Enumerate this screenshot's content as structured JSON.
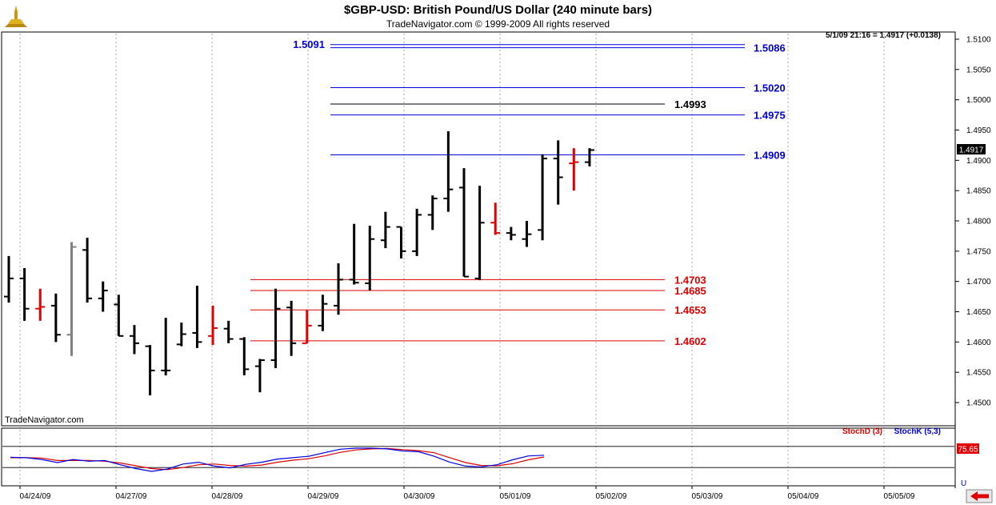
{
  "header": {
    "title": "$GBP-USD:  British Pound/US Dollar  (240 minute bars)",
    "copyright": "TradeNavigator.com © 1999-2009 All rights reserved"
  },
  "watermark": "TradeNavigator.com",
  "last_quote": "5/1/09 21:16 = 1.4917 (+0.0138)",
  "current_price_tag": "1.4917",
  "stoch": {
    "d_label": "StochD (3)",
    "k_label": "StochK (5,3)",
    "value_tag": "75.65",
    "d_color": "#e00000",
    "k_color": "#0000e0",
    "k_values": [
      49,
      48,
      43,
      34,
      43,
      38,
      40,
      28,
      17,
      9,
      16,
      30,
      35,
      24,
      19,
      29,
      35,
      44,
      48,
      52,
      62,
      72,
      75,
      75,
      73,
      67,
      65,
      52,
      35,
      24,
      22,
      28,
      42,
      53,
      55
    ],
    "d_values": [
      48,
      48,
      47,
      40,
      40,
      40,
      38,
      33,
      25,
      17,
      14,
      20,
      28,
      30,
      26,
      24,
      27,
      35,
      41,
      45,
      53,
      63,
      70,
      73,
      74,
      71,
      68,
      62,
      48,
      34,
      26,
      25,
      31,
      42,
      50
    ]
  },
  "colors": {
    "bar_normal": "#000000",
    "bar_gray": "#808080",
    "bar_red": "#e00000",
    "resistance": "#0000e0",
    "support": "#e00000",
    "pivot": "#000000"
  },
  "chart_data": {
    "type": "ohlc",
    "title": "$GBP-USD:  British Pound/US Dollar  (240 minute bars)",
    "ylim": [
      1.446,
      1.5125
    ],
    "y_ticks": [
      "1.4500",
      "1.4550",
      "1.4600",
      "1.4650",
      "1.4700",
      "1.4750",
      "1.4800",
      "1.4850",
      "1.4900",
      "1.4950",
      "1.5000",
      "1.5050",
      "1.5100"
    ],
    "x_ticks": [
      "04/24/09",
      "04/27/09",
      "04/28/09",
      "04/29/09",
      "04/30/09",
      "05/01/09",
      "05/02/09",
      "05/03/09",
      "05/04/09",
      "05/05/09"
    ],
    "bars": [
      {
        "o": 1.4675,
        "h": 1.4742,
        "l": 1.4665,
        "c": 1.4705,
        "color": "normal"
      },
      {
        "o": 1.4705,
        "h": 1.4722,
        "l": 1.4635,
        "c": 1.4655,
        "color": "normal"
      },
      {
        "o": 1.4655,
        "h": 1.4688,
        "l": 1.4635,
        "c": 1.4658,
        "color": "red"
      },
      {
        "o": 1.466,
        "h": 1.468,
        "l": 1.46,
        "c": 1.4612,
        "color": "normal"
      },
      {
        "o": 1.4612,
        "h": 1.4765,
        "l": 1.4577,
        "c": 1.4757,
        "color": "gray"
      },
      {
        "o": 1.4752,
        "h": 1.4772,
        "l": 1.4665,
        "c": 1.4672,
        "color": "normal"
      },
      {
        "o": 1.4672,
        "h": 1.47,
        "l": 1.465,
        "c": 1.4685,
        "color": "normal"
      },
      {
        "o": 1.4662,
        "h": 1.4678,
        "l": 1.461,
        "c": 1.461,
        "color": "normal"
      },
      {
        "o": 1.461,
        "h": 1.4628,
        "l": 1.458,
        "c": 1.4598,
        "color": "normal"
      },
      {
        "o": 1.4593,
        "h": 1.4595,
        "l": 1.4512,
        "c": 1.4553,
        "color": "normal"
      },
      {
        "o": 1.4553,
        "h": 1.464,
        "l": 1.4545,
        "c": 1.4553,
        "color": "normal"
      },
      {
        "o": 1.4596,
        "h": 1.4632,
        "l": 1.4593,
        "c": 1.4613,
        "color": "normal"
      },
      {
        "o": 1.4615,
        "h": 1.4693,
        "l": 1.459,
        "c": 1.46,
        "color": "normal"
      },
      {
        "o": 1.461,
        "h": 1.466,
        "l": 1.4595,
        "c": 1.4623,
        "color": "red"
      },
      {
        "o": 1.4622,
        "h": 1.4635,
        "l": 1.4598,
        "c": 1.4605,
        "color": "normal"
      },
      {
        "o": 1.4605,
        "h": 1.4608,
        "l": 1.4545,
        "c": 1.4555,
        "color": "normal"
      },
      {
        "o": 1.456,
        "h": 1.4572,
        "l": 1.4517,
        "c": 1.457,
        "color": "normal"
      },
      {
        "o": 1.457,
        "h": 1.4688,
        "l": 1.4557,
        "c": 1.4655,
        "color": "normal"
      },
      {
        "o": 1.4657,
        "h": 1.4668,
        "l": 1.4577,
        "c": 1.4598,
        "color": "normal"
      },
      {
        "o": 1.4598,
        "h": 1.4653,
        "l": 1.4598,
        "c": 1.4627,
        "color": "red"
      },
      {
        "o": 1.4627,
        "h": 1.4678,
        "l": 1.4618,
        "c": 1.4663,
        "color": "normal"
      },
      {
        "o": 1.466,
        "h": 1.473,
        "l": 1.4645,
        "c": 1.4703,
        "color": "normal"
      },
      {
        "o": 1.4703,
        "h": 1.4795,
        "l": 1.4695,
        "c": 1.4698,
        "color": "normal"
      },
      {
        "o": 1.4697,
        "h": 1.4792,
        "l": 1.4685,
        "c": 1.477,
        "color": "normal"
      },
      {
        "o": 1.4768,
        "h": 1.4815,
        "l": 1.4755,
        "c": 1.479,
        "color": "normal"
      },
      {
        "o": 1.479,
        "h": 1.479,
        "l": 1.4738,
        "c": 1.475,
        "color": "normal"
      },
      {
        "o": 1.475,
        "h": 1.482,
        "l": 1.4742,
        "c": 1.481,
        "color": "normal"
      },
      {
        "o": 1.481,
        "h": 1.4842,
        "l": 1.4785,
        "c": 1.4837,
        "color": "normal"
      },
      {
        "o": 1.4837,
        "h": 1.4948,
        "l": 1.4815,
        "c": 1.4852,
        "color": "normal"
      },
      {
        "o": 1.4855,
        "h": 1.4887,
        "l": 1.4708,
        "c": 1.4708,
        "color": "normal"
      },
      {
        "o": 1.4705,
        "h": 1.4858,
        "l": 1.4702,
        "c": 1.4797,
        "color": "normal"
      },
      {
        "o": 1.4797,
        "h": 1.483,
        "l": 1.4777,
        "c": 1.478,
        "color": "red"
      },
      {
        "o": 1.478,
        "h": 1.479,
        "l": 1.4768,
        "c": 1.4777,
        "color": "normal"
      },
      {
        "o": 1.477,
        "h": 1.48,
        "l": 1.4757,
        "c": 1.4778,
        "color": "normal"
      },
      {
        "o": 1.4785,
        "h": 1.491,
        "l": 1.4768,
        "c": 1.4903,
        "color": "normal"
      },
      {
        "o": 1.4903,
        "h": 1.4933,
        "l": 1.4827,
        "c": 1.4872,
        "color": "normal"
      },
      {
        "o": 1.4895,
        "h": 1.492,
        "l": 1.485,
        "c": 1.4897,
        "color": "red"
      },
      {
        "o": 1.4897,
        "h": 1.492,
        "l": 1.489,
        "c": 1.4917,
        "color": "normal"
      }
    ],
    "levels": [
      {
        "value": 1.5091,
        "label": "1.5091",
        "kind": "resistance",
        "label_side": "left"
      },
      {
        "value": 1.5086,
        "label": "1.5086",
        "kind": "resistance",
        "label_side": "right"
      },
      {
        "value": 1.502,
        "label": "1.5020",
        "kind": "resistance",
        "label_side": "right"
      },
      {
        "value": 1.4993,
        "label": "1.4993",
        "kind": "pivot",
        "label_side": "right"
      },
      {
        "value": 1.4975,
        "label": "1.4975",
        "kind": "resistance",
        "label_side": "right"
      },
      {
        "value": 1.4909,
        "label": "1.4909",
        "kind": "resistance",
        "label_side": "right"
      },
      {
        "value": 1.4703,
        "label": "1.4703",
        "kind": "support",
        "label_side": "right"
      },
      {
        "value": 1.4685,
        "label": "1.4685",
        "kind": "support",
        "label_side": "right"
      },
      {
        "value": 1.4653,
        "label": "1.4653",
        "kind": "support",
        "label_side": "right"
      },
      {
        "value": 1.4602,
        "label": "1.4602",
        "kind": "support",
        "label_side": "right"
      }
    ]
  }
}
